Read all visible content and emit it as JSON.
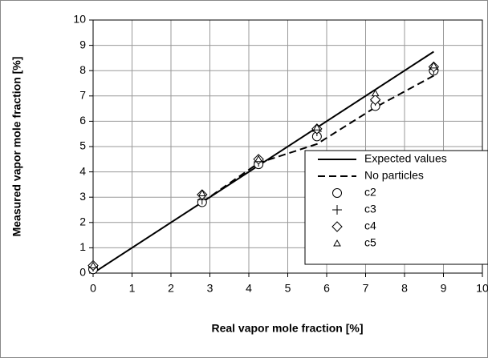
{
  "chart_data": {
    "type": "scatter",
    "x_label": "Real vapor mole fraction [%]",
    "y_label": "Measured vapor mole fraction [%]",
    "xlim": [
      0,
      10
    ],
    "ylim": [
      0,
      10
    ],
    "xticks": [
      0,
      1,
      2,
      3,
      4,
      5,
      6,
      7,
      8,
      9,
      10
    ],
    "yticks": [
      0,
      1,
      2,
      3,
      4,
      5,
      6,
      7,
      8,
      9,
      10
    ],
    "grid": true,
    "legend": "lower right",
    "series": [
      {
        "name": "Expected values",
        "style": "solid",
        "color": "#000000",
        "x": [
          0,
          8.75
        ],
        "values": [
          0,
          8.75
        ]
      },
      {
        "name": "No particles",
        "style": "dashed",
        "color": "#000000",
        "x": [
          2.8,
          4.25,
          5.75,
          7.25,
          8.75
        ],
        "values": [
          2.8,
          4.35,
          5.1,
          6.55,
          7.8
        ]
      },
      {
        "name": "c2",
        "style": "circle",
        "color": "#000000",
        "x": [
          0,
          2.8,
          4.25,
          5.75,
          7.25,
          8.75
        ],
        "values": [
          0.15,
          2.8,
          4.3,
          5.4,
          6.6,
          8.0
        ]
      },
      {
        "name": "c3",
        "style": "plus",
        "color": "#000000",
        "x": [
          0,
          2.8,
          4.25,
          5.75,
          7.25,
          8.75
        ],
        "values": [
          0.25,
          2.9,
          4.4,
          5.6,
          6.8,
          8.05
        ]
      },
      {
        "name": "c4",
        "style": "diamond",
        "color": "#000000",
        "x": [
          0,
          2.8,
          4.25,
          5.75,
          7.25,
          8.75
        ],
        "values": [
          0.3,
          3.1,
          4.5,
          5.7,
          6.85,
          8.15
        ]
      },
      {
        "name": "c5",
        "style": "triangle",
        "color": "#000000",
        "x": [
          0,
          2.8,
          4.25,
          5.75,
          7.25,
          8.75
        ],
        "values": [
          0.3,
          3.15,
          4.5,
          5.75,
          7.1,
          8.2
        ]
      }
    ]
  }
}
